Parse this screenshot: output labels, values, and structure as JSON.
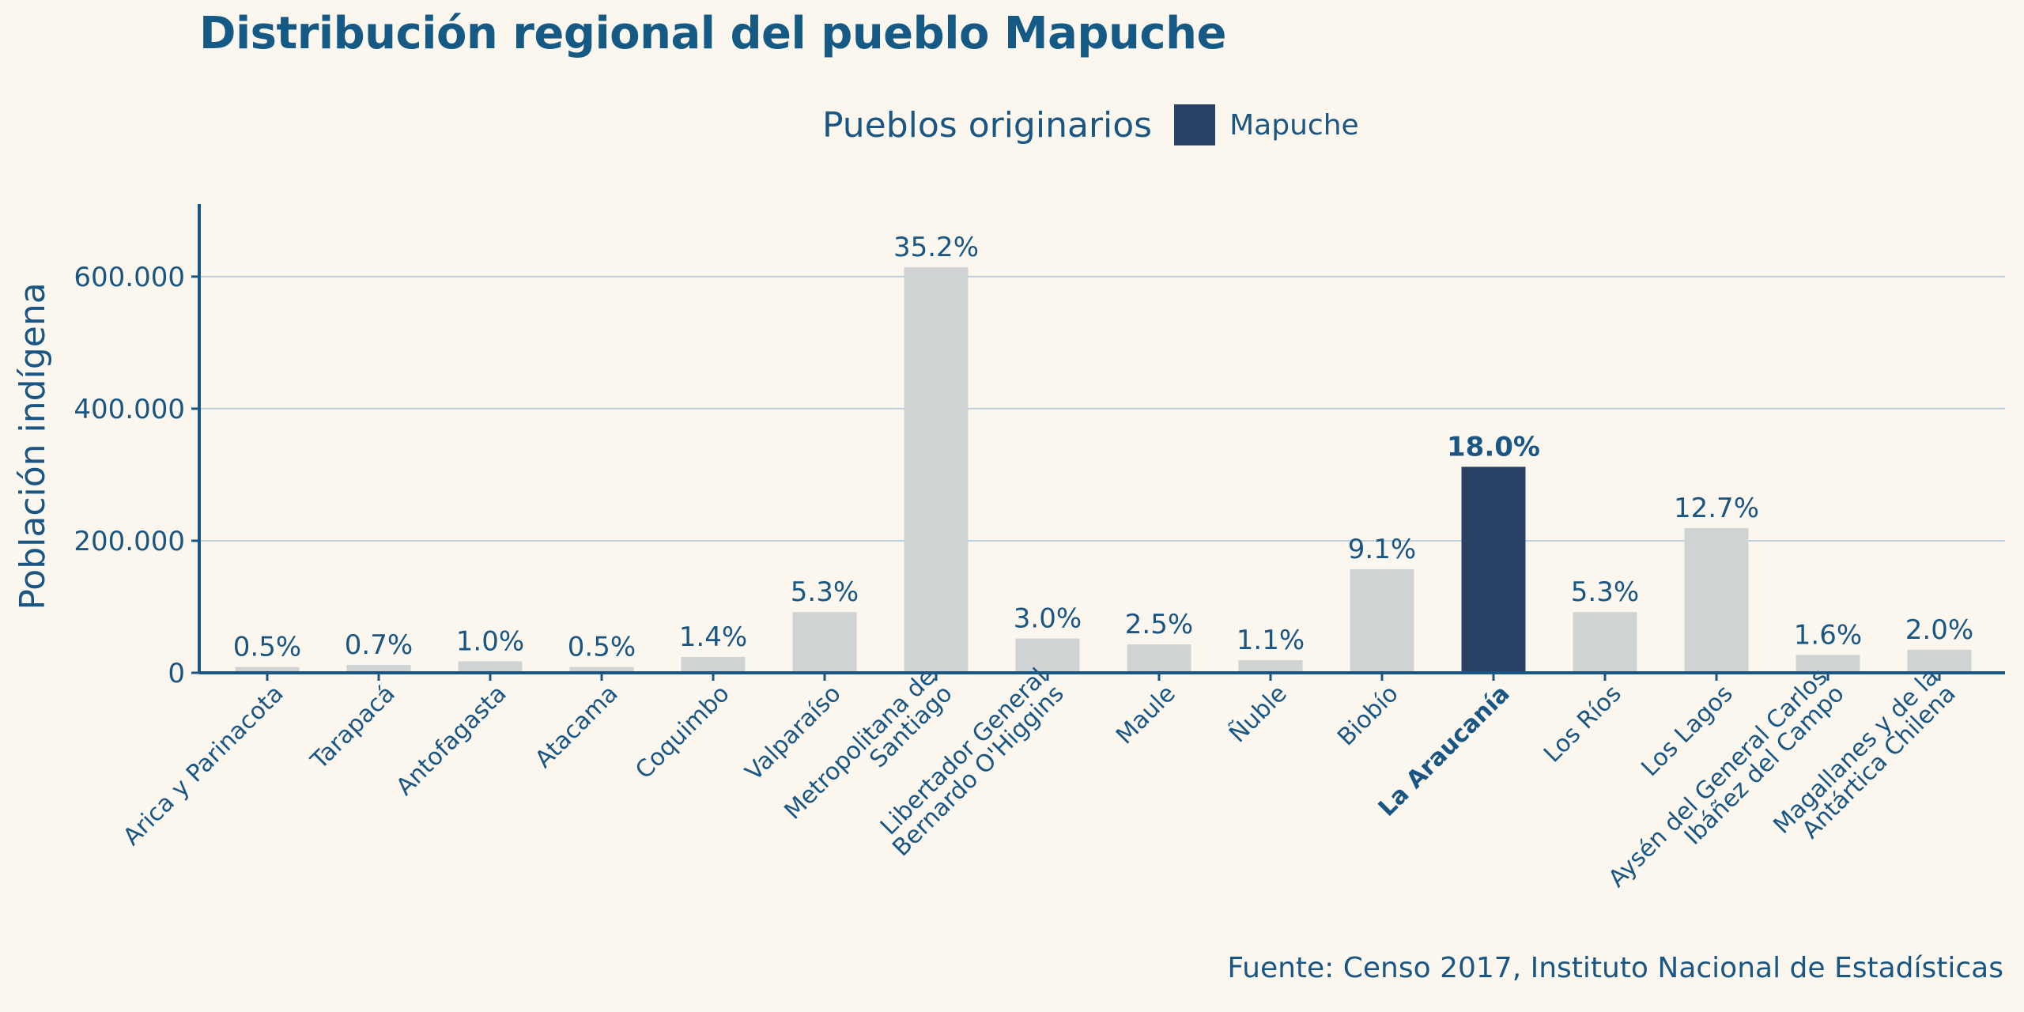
{
  "title": "Distribución regional del pueblo Mapuche",
  "legend": {
    "title": "Pueblos originarios",
    "label": "Mapuche"
  },
  "source": "Fuente: Censo 2017, Instituto Nacional de Estadísticas",
  "colors": {
    "background": "#fbf7ee",
    "highlight": "#2a4166",
    "muted_bar": "#d0d3d4",
    "text": "#1a5683",
    "grid": "#bfd0dd"
  },
  "chart_data": {
    "type": "bar",
    "title": "Distribución regional del pueblo Mapuche",
    "xlabel": "",
    "ylabel": "Población indígena",
    "ylim": [
      0,
      710000
    ],
    "yticks": [
      0,
      200000,
      400000,
      600000
    ],
    "ytick_labels": [
      "0",
      "200.000",
      "400.000",
      "600.000"
    ],
    "grid": true,
    "legend_position": "top",
    "highlight_index": 11,
    "categories": [
      [
        "Arica y Parinacota"
      ],
      [
        "Tarapacá"
      ],
      [
        "Antofagasta"
      ],
      [
        "Atacama"
      ],
      [
        "Coquimbo"
      ],
      [
        "Valparaíso"
      ],
      [
        "Metropolitana de",
        "Santiago"
      ],
      [
        "Libertador General",
        "Bernardo O'Higgins"
      ],
      [
        "Maule"
      ],
      [
        "Ñuble"
      ],
      [
        "Biobío"
      ],
      [
        "La Araucanía"
      ],
      [
        "Los Ríos"
      ],
      [
        "Los Lagos"
      ],
      [
        "Aysén del General Carlos",
        "Ibáñez del Campo"
      ],
      [
        "Magallanes y de la",
        "Antártica Chilena"
      ]
    ],
    "series": [
      {
        "name": "Mapuche",
        "values": [
          8800,
          12000,
          17500,
          8800,
          24000,
          92000,
          614000,
          52000,
          43000,
          19000,
          157000,
          312000,
          92000,
          219000,
          27000,
          35000
        ],
        "labels": [
          "0.5%",
          "0.7%",
          "1.0%",
          "0.5%",
          "1.4%",
          "5.3%",
          "35.2%",
          "3.0%",
          "2.5%",
          "1.1%",
          "9.1%",
          "18.0%",
          "5.3%",
          "12.7%",
          "1.6%",
          "2.0%"
        ]
      }
    ]
  }
}
